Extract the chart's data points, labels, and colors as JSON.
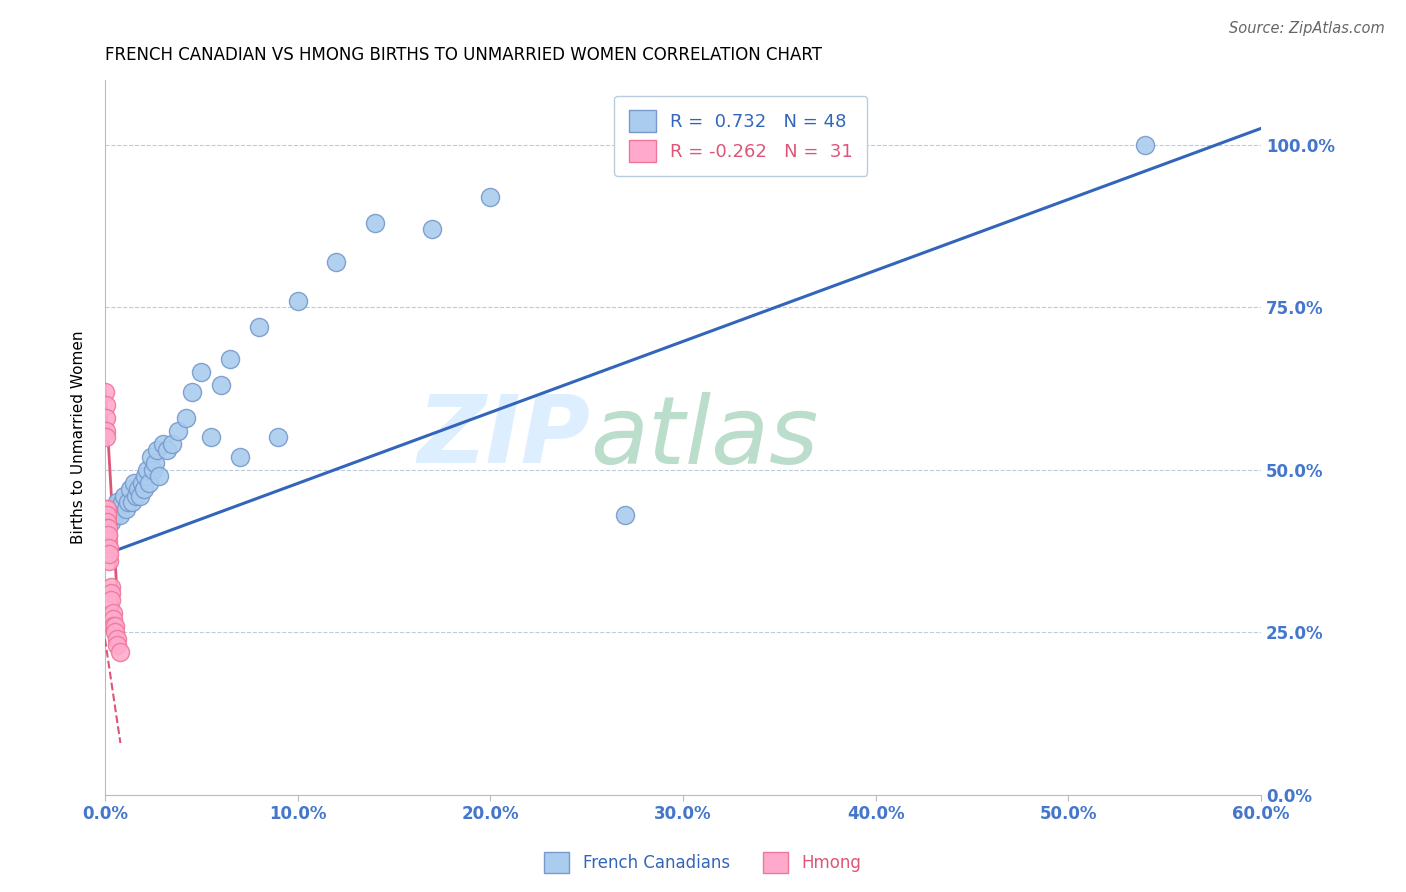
{
  "title": "FRENCH CANADIAN VS HMONG BIRTHS TO UNMARRIED WOMEN CORRELATION CHART",
  "source": "Source: ZipAtlas.com",
  "ylabel": "Births to Unmarried Women",
  "xlabel_ticks": [
    "0.0%",
    "10.0%",
    "20.0%",
    "30.0%",
    "40.0%",
    "50.0%",
    "60.0%"
  ],
  "ylabel_ticks": [
    "0.0%",
    "25.0%",
    "50.0%",
    "75.0%",
    "100.0%"
  ],
  "xlim": [
    0.0,
    0.6
  ],
  "ylim": [
    0.0,
    1.1
  ],
  "blue_R": 0.732,
  "blue_N": 48,
  "pink_R": -0.262,
  "pink_N": 31,
  "blue_scatter_x": [
    0.001,
    0.003,
    0.004,
    0.005,
    0.006,
    0.007,
    0.008,
    0.009,
    0.01,
    0.011,
    0.012,
    0.013,
    0.014,
    0.015,
    0.016,
    0.017,
    0.018,
    0.019,
    0.02,
    0.021,
    0.022,
    0.023,
    0.024,
    0.025,
    0.026,
    0.027,
    0.028,
    0.03,
    0.032,
    0.035,
    0.038,
    0.042,
    0.045,
    0.05,
    0.055,
    0.06,
    0.065,
    0.07,
    0.08,
    0.09,
    0.1,
    0.12,
    0.14,
    0.17,
    0.2,
    0.27,
    0.38,
    0.54
  ],
  "blue_scatter_y": [
    0.41,
    0.42,
    0.44,
    0.43,
    0.45,
    0.44,
    0.43,
    0.45,
    0.46,
    0.44,
    0.45,
    0.47,
    0.45,
    0.48,
    0.46,
    0.47,
    0.46,
    0.48,
    0.47,
    0.49,
    0.5,
    0.48,
    0.52,
    0.5,
    0.51,
    0.53,
    0.49,
    0.54,
    0.53,
    0.54,
    0.56,
    0.58,
    0.62,
    0.65,
    0.55,
    0.63,
    0.67,
    0.52,
    0.72,
    0.55,
    0.76,
    0.82,
    0.88,
    0.87,
    0.92,
    0.43,
    1.0,
    1.0
  ],
  "pink_scatter_x": [
    0.0002,
    0.0003,
    0.0004,
    0.0005,
    0.0006,
    0.0007,
    0.0008,
    0.0009,
    0.001,
    0.001,
    0.0012,
    0.0013,
    0.0014,
    0.0015,
    0.0016,
    0.0017,
    0.0018,
    0.002,
    0.002,
    0.002,
    0.003,
    0.003,
    0.003,
    0.004,
    0.004,
    0.004,
    0.005,
    0.005,
    0.006,
    0.006,
    0.008
  ],
  "pink_scatter_y": [
    0.62,
    0.6,
    0.58,
    0.56,
    0.55,
    0.44,
    0.43,
    0.42,
    0.44,
    0.43,
    0.42,
    0.41,
    0.4,
    0.41,
    0.39,
    0.38,
    0.4,
    0.38,
    0.36,
    0.37,
    0.32,
    0.31,
    0.3,
    0.28,
    0.27,
    0.26,
    0.26,
    0.25,
    0.24,
    0.23,
    0.22
  ],
  "blue_line_x": [
    0.0,
    0.6
  ],
  "blue_line_y": [
    0.37,
    1.025
  ],
  "pink_solid_line_x": [
    0.0,
    0.008
  ],
  "pink_solid_line_y": [
    0.63,
    0.22
  ],
  "pink_dashed_line_x": [
    0.0,
    0.008
  ],
  "pink_dashed_line_y": [
    0.24,
    0.08
  ],
  "blue_line_color": "#3366BB",
  "blue_scatter_facecolor": "#AACCEE",
  "blue_scatter_edgecolor": "#7799CC",
  "pink_line_color": "#DD5577",
  "pink_scatter_facecolor": "#FFAACC",
  "pink_scatter_edgecolor": "#EE7799",
  "watermark_zip": "ZIP",
  "watermark_atlas": "atlas",
  "watermark_color": "#DDEEFF",
  "title_fontsize": 12,
  "legend_label_blue": "French Canadians",
  "legend_label_pink": "Hmong",
  "tick_color": "#4477CC",
  "grid_color": "#BBCCDD"
}
